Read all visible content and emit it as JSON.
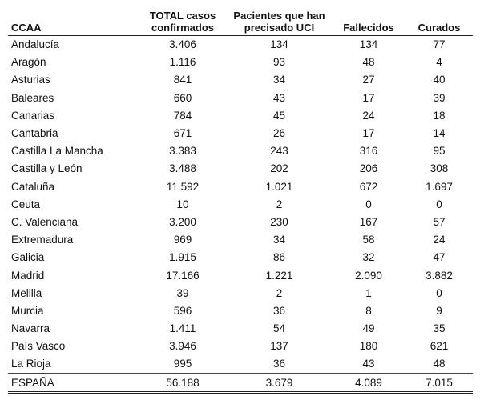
{
  "table": {
    "headers": [
      "CCAA",
      "TOTAL casos\nconfirmados",
      "Pacientes que han\nprecisado UCI",
      "Fallecidos",
      "Curados"
    ],
    "rows": [
      [
        "Andalucía",
        "3.406",
        "134",
        "134",
        "77"
      ],
      [
        "Aragón",
        "1.116",
        "93",
        "48",
        "4"
      ],
      [
        "Asturias",
        "841",
        "34",
        "27",
        "40"
      ],
      [
        "Baleares",
        "660",
        "43",
        "17",
        "39"
      ],
      [
        "Canarias",
        "784",
        "45",
        "24",
        "18"
      ],
      [
        "Cantabria",
        "671",
        "26",
        "17",
        "14"
      ],
      [
        "Castilla La Mancha",
        "3.383",
        "243",
        "316",
        "95"
      ],
      [
        "Castilla y León",
        "3.488",
        "202",
        "206",
        "308"
      ],
      [
        "Cataluña",
        "11.592",
        "1.021",
        "672",
        "1.697"
      ],
      [
        "Ceuta",
        "10",
        "2",
        "0",
        "0"
      ],
      [
        "C. Valenciana",
        "3.200",
        "230",
        "167",
        "57"
      ],
      [
        "Extremadura",
        "969",
        "34",
        "58",
        "24"
      ],
      [
        "Galicia",
        "1.915",
        "86",
        "32",
        "47"
      ],
      [
        "Madrid",
        "17.166",
        "1.221",
        "2.090",
        "3.882"
      ],
      [
        "Melilla",
        "39",
        "2",
        "1",
        "0"
      ],
      [
        "Murcia",
        "596",
        "36",
        "8",
        "9"
      ],
      [
        "Navarra",
        "1.411",
        "54",
        "49",
        "35"
      ],
      [
        "País Vasco",
        "3.946",
        "137",
        "180",
        "621"
      ],
      [
        "La Rioja",
        "995",
        "36",
        "43",
        "48"
      ]
    ],
    "total": [
      "ESPAÑA",
      "56.188",
      "3.679",
      "4.089",
      "7.015"
    ]
  }
}
